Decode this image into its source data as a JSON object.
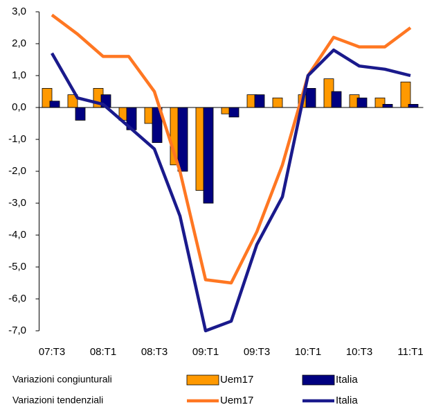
{
  "chart_data": {
    "type": "bar",
    "categories": [
      "07:T3",
      null,
      "08:T1",
      null,
      "08:T3",
      null,
      "09:T1",
      null,
      "09:T3",
      null,
      "10:T1",
      null,
      "10:T3",
      null,
      "11:T1"
    ],
    "legend_groups": [
      "Variazioni congiunturali",
      "Variazioni tendenziali"
    ],
    "series": [
      {
        "name": "Uem17",
        "type": "bar",
        "color": "#ff9900",
        "values": [
          0.6,
          0.4,
          0.6,
          -0.4,
          -0.5,
          -1.8,
          -2.6,
          -0.2,
          0.4,
          0.3,
          0.4,
          0.9,
          0.4,
          0.3,
          0.8
        ]
      },
      {
        "name": "Italia",
        "type": "bar",
        "color": "#000080",
        "values": [
          0.2,
          -0.4,
          0.4,
          -0.7,
          -1.1,
          -2.0,
          -3.0,
          -0.3,
          0.4,
          0.0,
          0.6,
          0.5,
          0.3,
          0.1,
          0.1
        ]
      },
      {
        "name": "Uem17",
        "type": "line",
        "color": "#ff7722",
        "values": [
          2.9,
          2.3,
          1.6,
          1.6,
          0.5,
          -2.0,
          -5.4,
          -5.5,
          -3.9,
          -1.8,
          1.0,
          2.2,
          1.9,
          1.9,
          2.5
        ]
      },
      {
        "name": "Italia",
        "type": "line",
        "color": "#1a1a8c",
        "values": [
          1.7,
          0.3,
          0.1,
          -0.6,
          -1.3,
          -3.4,
          -7.0,
          -6.7,
          -4.3,
          -2.8,
          1.0,
          1.8,
          1.3,
          1.2,
          1.0
        ]
      }
    ],
    "ylim": [
      -7.0,
      3.0
    ],
    "yticks": [
      {
        "value": -7,
        "label": "-7,0"
      },
      {
        "value": -6,
        "label": "-6,0"
      },
      {
        "value": -5,
        "label": "-5,0"
      },
      {
        "value": -4,
        "label": "-4,0"
      },
      {
        "value": -3,
        "label": "-3,0"
      },
      {
        "value": -2,
        "label": "-2,0"
      },
      {
        "value": -1,
        "label": "-1,0"
      },
      {
        "value": 0,
        "label": "0,0"
      },
      {
        "value": 1,
        "label": "1,0"
      },
      {
        "value": 2,
        "label": "2,0"
      },
      {
        "value": 3,
        "label": "3,0"
      }
    ],
    "grid": false
  }
}
